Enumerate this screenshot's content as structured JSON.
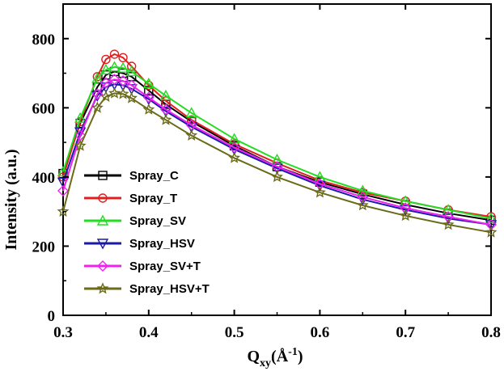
{
  "chart_data": {
    "type": "line",
    "xlabel": "Qxy(Å-1)",
    "xlabel_parts": {
      "main": "Q",
      "sub": "xy",
      "open": "(Å",
      "sup": "-1",
      "close": ")"
    },
    "ylabel": "Intensity (a.u.)",
    "xlim": [
      0.3,
      0.8
    ],
    "ylim": [
      0,
      900
    ],
    "x_ticks": [
      "0.3",
      "0.4",
      "0.5",
      "0.6",
      "0.7",
      "0.8"
    ],
    "y_ticks": [
      "0",
      "200",
      "400",
      "600",
      "800"
    ],
    "grid": false,
    "legend_position": "middle-left",
    "x": [
      0.3,
      0.32,
      0.34,
      0.35,
      0.36,
      0.37,
      0.38,
      0.4,
      0.42,
      0.45,
      0.5,
      0.55,
      0.6,
      0.65,
      0.7,
      0.75,
      0.8
    ],
    "series": [
      {
        "name": "Spray_C",
        "color": "#000000",
        "marker": "square",
        "values": [
          410,
          555,
          660,
          695,
          705,
          700,
          690,
          650,
          610,
          560,
          490,
          430,
          385,
          350,
          320,
          295,
          275
        ]
      },
      {
        "name": "Spray_T",
        "color": "#e02020",
        "marker": "circle",
        "values": [
          400,
          560,
          690,
          740,
          755,
          745,
          720,
          665,
          620,
          565,
          495,
          440,
          390,
          355,
          330,
          305,
          285
        ]
      },
      {
        "name": "Spray_SV",
        "color": "#22dd22",
        "marker": "triangle-up",
        "values": [
          415,
          570,
          685,
          710,
          718,
          715,
          705,
          670,
          635,
          585,
          510,
          450,
          400,
          360,
          330,
          305,
          280
        ]
      },
      {
        "name": "Spray_HSV",
        "color": "#1a1aaa",
        "marker": "triangle-down",
        "values": [
          385,
          530,
          635,
          660,
          668,
          665,
          655,
          625,
          590,
          545,
          480,
          425,
          375,
          335,
          305,
          280,
          262
        ]
      },
      {
        "name": "Spray_SV+T",
        "color": "#ee22ee",
        "marker": "diamond",
        "values": [
          360,
          520,
          640,
          672,
          682,
          678,
          665,
          630,
          595,
          550,
          485,
          430,
          380,
          342,
          310,
          285,
          262
        ]
      },
      {
        "name": "Spray_HSV+T",
        "color": "#6b6b1a",
        "marker": "star",
        "values": [
          300,
          490,
          600,
          632,
          642,
          640,
          628,
          595,
          565,
          520,
          455,
          400,
          355,
          318,
          288,
          262,
          240
        ]
      }
    ]
  }
}
